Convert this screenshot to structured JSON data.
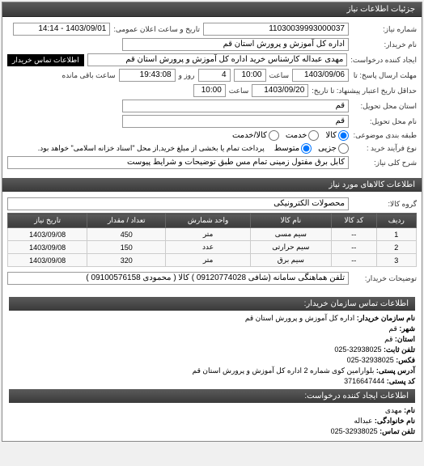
{
  "panel_title": "جزئیات اطلاعات نیاز",
  "fields": {
    "ref_no_label": "شماره نیاز:",
    "ref_no": "11030039993000037",
    "date_label": "تاریخ و ساعت اعلان عمومی:",
    "date_value": "1403/09/01 - 14:14",
    "buyer_label": "نام خریدار:",
    "buyer": "اداره کل آموزش و پرورش استان قم",
    "creator_label": "ایجاد کننده درخواست:",
    "creator": "مهدی عبداله کارشناس خرید اداره کل آموزش و پرورش استان قم",
    "contact_btn": "اطلاعات تماس خریدار",
    "deadline_from_label": "مهلت ارسال پاسخ: تا",
    "deadline_from_date": "1403/09/06",
    "time_label": "ساعت",
    "deadline_from_time": "10:00",
    "days_label": "روز و",
    "days_value": "4",
    "remaining_label": "ساعت باقی مانده",
    "remaining_value": "19:43:08",
    "deadline_to_label": "حداقل تاریخ اعتبار پیشنهاد: تا تاریخ:",
    "deadline_to_date": "1403/09/20",
    "deadline_to_time": "10:00",
    "province_label": "استان محل تحویل:",
    "province": "قم",
    "city_label": "نام محل تحویل:",
    "city": "قم",
    "category_label": "طبقه بندی موضوعی:",
    "category_opts": [
      "کالا",
      "خدمت",
      "کالا/خدمت"
    ],
    "process_label": "نوع فرآیند خرید :",
    "process_opts": [
      "جزیی",
      "متوسط"
    ],
    "process_note": "پرداخت تمام یا بخشی از مبلغ خرید,از محل \"اسناد خزانه اسلامی\" خواهد بود.",
    "desc_label": "شرح کلی نیاز:",
    "desc": "کابل برق مفتول زمینی تمام مس طبق توضیحات و شرایط پیوست"
  },
  "goods_section_title": "اطلاعات کالاهای مورد نیاز",
  "group_label": "گروه کالا:",
  "group_value": "محصولات الکترونیکی",
  "table": {
    "columns": [
      "ردیف",
      "کد کالا",
      "نام کالا",
      "واحد شمارش",
      "تعداد / مقدار",
      "تاریخ نیاز"
    ],
    "rows": [
      [
        "1",
        "--",
        "سیم مسی",
        "متر",
        "450",
        "1403/09/08"
      ],
      [
        "2",
        "--",
        "سیم حرارتی",
        "عدد",
        "150",
        "1403/09/08"
      ],
      [
        "3",
        "--",
        "سیم برق",
        "متر",
        "320",
        "1403/09/08"
      ]
    ]
  },
  "buyer_note_label": "توضیحات خریدار:",
  "buyer_note": "تلفن هماهنگی سامانه (شافی 09120774028 ) کالا ( محمودی 09100576158 )",
  "contact_section_title": "اطلاعات تماس سازمان خریدار:",
  "contact": {
    "org_label": "نام سازمان خریدار:",
    "org": "اداره کل آموزش و پرورش استان قم",
    "province_label": "شهر:",
    "province": "قم",
    "city_label": "استان:",
    "city": "قم",
    "tel_label": "تلفن ثابت:",
    "tel": "32938025-025",
    "fax_label": "فکس:",
    "fax": "32938025-025",
    "address_label": "آدرس پستی:",
    "address": "بلوارامین کوی شماره 2 اداره کل آموزش و پرورش استان قم",
    "postal_label": "کد پستی:",
    "postal": "3716647444",
    "req_creator_title": "اطلاعات ایجاد کننده درخواست:",
    "name_label": "نام:",
    "name": "مهدی",
    "family_label": "نام خانوادگی:",
    "family": "عبداله",
    "phone_label": "تلفن تماس:",
    "phone": "32938025-025"
  }
}
